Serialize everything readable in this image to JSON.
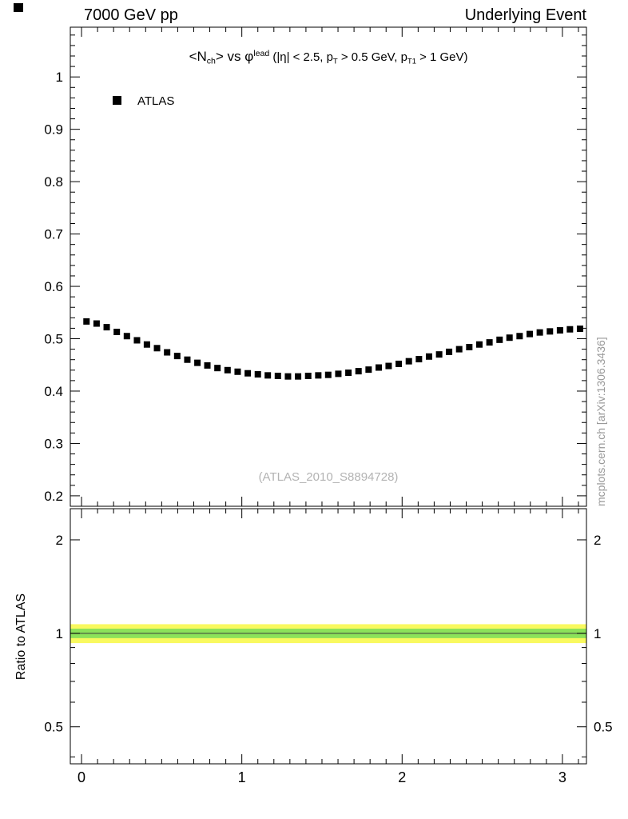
{
  "header": {
    "left": "7000 GeV pp",
    "right": "Underlying Event"
  },
  "watermark": "(ATLAS_2010_S8894728)",
  "side_note": "mcplots.cern.ch [arXiv:1306.3436]",
  "legend": [
    {
      "label": "ATLAS",
      "marker": "black-filled-square",
      "color": "#000000"
    }
  ],
  "title_parts": [
    {
      "t": "<N"
    },
    {
      "t": "ch",
      "s": "sub"
    },
    {
      "t": "> vs "
    },
    {
      "t": "φ"
    },
    {
      "t": "lead",
      "s": "sup"
    },
    {
      "t": " (|η| < 2.5, p",
      "s": "small"
    },
    {
      "t": "T",
      "s": "sub small"
    },
    {
      "t": " > 0.5 GeV, p",
      "s": "small"
    },
    {
      "t": "T1",
      "s": "sub small"
    },
    {
      "t": " > 1 GeV)",
      "s": "small"
    }
  ],
  "chart_data": {
    "type": "scatter",
    "title": "<N_ch> vs phi^lead (|eta| < 2.5, p_T > 0.5 GeV, p_T1 > 1 GeV)",
    "xlim": [
      -0.07,
      3.15
    ],
    "xticks": [
      0,
      1,
      2,
      3
    ],
    "x_minor_step": 0.1,
    "main": {
      "ylim": [
        0.18,
        1.095
      ],
      "yticks": [
        0.2,
        0.3,
        0.4,
        0.5,
        0.6,
        0.7,
        0.8,
        0.9,
        1
      ],
      "y_minor_step": 0.02
    },
    "series": [
      {
        "name": "ATLAS",
        "marker": "filled-square",
        "color": "#000000",
        "x": [
          0.031,
          0.094,
          0.157,
          0.22,
          0.283,
          0.346,
          0.408,
          0.471,
          0.534,
          0.597,
          0.66,
          0.723,
          0.785,
          0.848,
          0.911,
          0.974,
          1.037,
          1.1,
          1.162,
          1.225,
          1.288,
          1.351,
          1.414,
          1.477,
          1.539,
          1.602,
          1.665,
          1.728,
          1.791,
          1.854,
          1.916,
          1.979,
          2.042,
          2.105,
          2.168,
          2.231,
          2.293,
          2.356,
          2.419,
          2.482,
          2.545,
          2.608,
          2.67,
          2.733,
          2.796,
          2.859,
          2.922,
          2.985,
          3.047,
          3.11
        ],
        "y": [
          0.533,
          0.529,
          0.522,
          0.513,
          0.505,
          0.497,
          0.489,
          0.482,
          0.474,
          0.467,
          0.46,
          0.454,
          0.449,
          0.444,
          0.44,
          0.437,
          0.434,
          0.432,
          0.43,
          0.429,
          0.428,
          0.428,
          0.429,
          0.43,
          0.431,
          0.433,
          0.435,
          0.438,
          0.441,
          0.445,
          0.448,
          0.452,
          0.457,
          0.461,
          0.466,
          0.47,
          0.475,
          0.48,
          0.484,
          0.489,
          0.493,
          0.498,
          0.502,
          0.505,
          0.509,
          0.512,
          0.514,
          0.516,
          0.518,
          0.519
        ]
      }
    ],
    "ratio": {
      "ylabel": "Ratio to ATLAS",
      "scale": "log",
      "ylim": [
        0.38,
        2.52
      ],
      "yticks": [
        0.5,
        1,
        2
      ],
      "minor_ticks": [
        0.4,
        0.6,
        0.7,
        0.8,
        0.9
      ],
      "bands": [
        {
          "low": 0.93,
          "high": 1.07,
          "color": "#f9f95f"
        },
        {
          "low": 0.965,
          "high": 1.035,
          "color": "#8ce25a"
        }
      ],
      "ref_line": 1,
      "ref_line_color": "#3c3c3c"
    }
  }
}
